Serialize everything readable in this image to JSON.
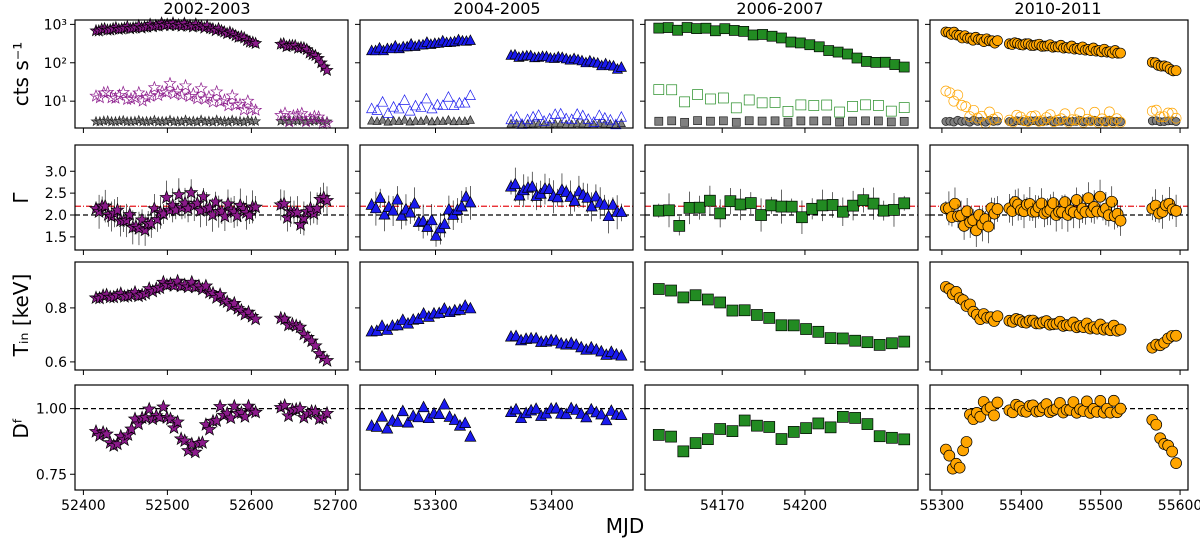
{
  "chart_data": {
    "type": "scatter",
    "title": "",
    "xlabel": "MJD",
    "row_labels": {
      "rate": "cts s⁻¹",
      "gamma": "Γ",
      "tin": "Tᵢₙ  [keV]",
      "df": "Dᶠ"
    },
    "reference_lines": {
      "gamma_black": 2.0,
      "gamma_red": 2.2,
      "df_black": 1.0
    },
    "columns": [
      {
        "title": "2002-2003",
        "marker": "star",
        "color": "#8b1a8b",
        "xlim": [
          52390,
          52715
        ],
        "xticks": [
          "52400",
          "52500",
          "52600",
          "52700"
        ],
        "xtick_values": [
          52400,
          52500,
          52600,
          52700
        ],
        "segments": [
          [
            52415,
            52605
          ],
          [
            52635,
            52690
          ]
        ],
        "rate_total_knots": [
          [
            52415,
            700
          ],
          [
            52470,
            850
          ],
          [
            52500,
            1000
          ],
          [
            52540,
            900
          ],
          [
            52605,
            300
          ],
          [
            52635,
            300
          ],
          [
            52660,
            250
          ],
          [
            52690,
            60
          ]
        ],
        "rate_soft_knots": [
          [
            52415,
            15
          ],
          [
            52470,
            12
          ],
          [
            52500,
            20
          ],
          [
            52540,
            14
          ],
          [
            52605,
            6
          ],
          [
            52635,
            4
          ],
          [
            52660,
            4
          ],
          [
            52690,
            3
          ]
        ],
        "rate_hard_knots": [
          [
            52415,
            3
          ],
          [
            52605,
            3
          ],
          [
            52635,
            3
          ],
          [
            52690,
            3
          ]
        ],
        "gamma_knots": [
          [
            52415,
            2.2
          ],
          [
            52450,
            1.9
          ],
          [
            52470,
            1.7
          ],
          [
            52500,
            2.2
          ],
          [
            52530,
            2.3
          ],
          [
            52560,
            2.1
          ],
          [
            52605,
            2.1
          ],
          [
            52635,
            2.2
          ],
          [
            52660,
            1.9
          ],
          [
            52690,
            2.4
          ]
        ],
        "tin_knots": [
          [
            52415,
            0.84
          ],
          [
            52470,
            0.85
          ],
          [
            52500,
            0.89
          ],
          [
            52540,
            0.88
          ],
          [
            52605,
            0.76
          ],
          [
            52635,
            0.76
          ],
          [
            52660,
            0.72
          ],
          [
            52690,
            0.6
          ]
        ],
        "df_knots": [
          [
            52415,
            0.92
          ],
          [
            52440,
            0.86
          ],
          [
            52470,
            0.97
          ],
          [
            52500,
            0.98
          ],
          [
            52530,
            0.83
          ],
          [
            52560,
            0.98
          ],
          [
            52605,
            0.99
          ],
          [
            52635,
            1.0
          ],
          [
            52690,
            0.97
          ]
        ]
      },
      {
        "title": "2004-2005",
        "marker": "triangle",
        "color": "#1a1aee",
        "xlim": [
          53235,
          53470
        ],
        "xticks": [
          "53300",
          "53400"
        ],
        "xtick_values": [
          53300,
          53400
        ],
        "segments": [
          [
            53245,
            53330
          ],
          [
            53365,
            53460
          ]
        ],
        "rate_total_knots": [
          [
            53245,
            200
          ],
          [
            53270,
            250
          ],
          [
            53300,
            320
          ],
          [
            53330,
            380
          ],
          [
            53365,
            150
          ],
          [
            53410,
            130
          ],
          [
            53460,
            70
          ]
        ],
        "rate_soft_knots": [
          [
            53245,
            6
          ],
          [
            53300,
            8
          ],
          [
            53330,
            10
          ],
          [
            53365,
            3
          ],
          [
            53410,
            4
          ],
          [
            53460,
            3
          ]
        ],
        "rate_hard_knots": [
          [
            53245,
            3
          ],
          [
            53330,
            3
          ],
          [
            53365,
            2.5
          ],
          [
            53460,
            2.5
          ]
        ],
        "gamma_knots": [
          [
            53245,
            2.2
          ],
          [
            53280,
            2.1
          ],
          [
            53300,
            1.6
          ],
          [
            53320,
            2.2
          ],
          [
            53330,
            2.3
          ],
          [
            53365,
            2.6
          ],
          [
            53400,
            2.5
          ],
          [
            53430,
            2.4
          ],
          [
            53460,
            2.0
          ]
        ],
        "tin_knots": [
          [
            53245,
            0.71
          ],
          [
            53270,
            0.74
          ],
          [
            53300,
            0.78
          ],
          [
            53330,
            0.8
          ],
          [
            53365,
            0.69
          ],
          [
            53410,
            0.67
          ],
          [
            53460,
            0.62
          ]
        ],
        "df_knots": [
          [
            53245,
            0.93
          ],
          [
            53280,
            0.97
          ],
          [
            53310,
            0.99
          ],
          [
            53330,
            0.9
          ],
          [
            53365,
            0.98
          ],
          [
            53410,
            0.99
          ],
          [
            53460,
            0.97
          ]
        ]
      },
      {
        "title": "2006-2007",
        "marker": "square",
        "color": "#228b22",
        "xlim": [
          54142,
          54241
        ],
        "xticks": [
          "54170",
          "54200"
        ],
        "xtick_values": [
          54170,
          54200
        ],
        "segments": [
          [
            54147,
            54236
          ]
        ],
        "rate_total_knots": [
          [
            54147,
            800
          ],
          [
            54170,
            750
          ],
          [
            54200,
            300
          ],
          [
            54220,
            120
          ],
          [
            54236,
            80
          ]
        ],
        "rate_soft_knots": [
          [
            54147,
            20
          ],
          [
            54160,
            12
          ],
          [
            54180,
            9
          ],
          [
            54200,
            7
          ],
          [
            54236,
            7
          ]
        ],
        "rate_hard_knots": [
          [
            54147,
            3
          ],
          [
            54236,
            3
          ]
        ],
        "gamma_knots": [
          [
            54147,
            2.1
          ],
          [
            54155,
            1.95
          ],
          [
            54165,
            2.25
          ],
          [
            54180,
            2.2
          ],
          [
            54200,
            2.1
          ],
          [
            54220,
            2.25
          ],
          [
            54236,
            2.15
          ]
        ],
        "tin_knots": [
          [
            54147,
            0.87
          ],
          [
            54165,
            0.83
          ],
          [
            54180,
            0.78
          ],
          [
            54200,
            0.72
          ],
          [
            54220,
            0.67
          ],
          [
            54236,
            0.67
          ]
        ],
        "df_knots": [
          [
            54147,
            0.9
          ],
          [
            54160,
            0.85
          ],
          [
            54175,
            0.95
          ],
          [
            54195,
            0.9
          ],
          [
            54215,
            0.97
          ],
          [
            54236,
            0.87
          ]
        ]
      },
      {
        "title": "2010-2011",
        "marker": "circle",
        "color": "#ffa500",
        "xlim": [
          55285,
          55610
        ],
        "xticks": [
          "55300",
          "55400",
          "55500",
          "55600"
        ],
        "xtick_values": [
          55300,
          55400,
          55500,
          55600
        ],
        "segments": [
          [
            55305,
            55370
          ],
          [
            55385,
            55525
          ],
          [
            55565,
            55595
          ]
        ],
        "rate_total_knots": [
          [
            55305,
            650
          ],
          [
            55330,
            450
          ],
          [
            55370,
            350
          ],
          [
            55385,
            320
          ],
          [
            55450,
            260
          ],
          [
            55525,
            180
          ],
          [
            55565,
            100
          ],
          [
            55595,
            60
          ]
        ],
        "rate_soft_knots": [
          [
            55305,
            20
          ],
          [
            55320,
            10
          ],
          [
            55340,
            4
          ],
          [
            55370,
            3.5
          ],
          [
            55385,
            3.5
          ],
          [
            55525,
            3.5
          ],
          [
            55565,
            5
          ],
          [
            55595,
            4
          ]
        ],
        "rate_hard_knots": [
          [
            55305,
            3
          ],
          [
            55595,
            3
          ]
        ],
        "gamma_knots": [
          [
            55305,
            2.2
          ],
          [
            55330,
            1.9
          ],
          [
            55350,
            1.8
          ],
          [
            55370,
            2.1
          ],
          [
            55385,
            2.2
          ],
          [
            55450,
            2.1
          ],
          [
            55500,
            2.2
          ],
          [
            55525,
            2.0
          ],
          [
            55565,
            2.1
          ],
          [
            55595,
            2.2
          ]
        ],
        "tin_knots": [
          [
            55305,
            0.88
          ],
          [
            55330,
            0.82
          ],
          [
            55345,
            0.77
          ],
          [
            55370,
            0.76
          ],
          [
            55385,
            0.755
          ],
          [
            55450,
            0.74
          ],
          [
            55525,
            0.72
          ],
          [
            55565,
            0.65
          ],
          [
            55595,
            0.7
          ]
        ],
        "df_knots": [
          [
            55305,
            0.85
          ],
          [
            55320,
            0.75
          ],
          [
            55335,
            0.95
          ],
          [
            55350,
            1.0
          ],
          [
            55370,
            1.0
          ],
          [
            55385,
            1.0
          ],
          [
            55525,
            1.0
          ],
          [
            55565,
            0.95
          ],
          [
            55595,
            0.8
          ]
        ]
      }
    ],
    "rows": [
      {
        "key": "rate",
        "scale": "log",
        "ylim": [
          2,
          1300
        ],
        "yticks": [
          {
            "value": 10,
            "label": "10¹"
          },
          {
            "value": 100,
            "label": "10²"
          },
          {
            "value": 1000,
            "label": "10³"
          }
        ]
      },
      {
        "key": "gamma",
        "scale": "linear",
        "ylim": [
          1.2,
          3.6
        ],
        "yticks": [
          {
            "value": 1.5,
            "label": "1.5"
          },
          {
            "value": 2.0,
            "label": "2.0"
          },
          {
            "value": 2.5,
            "label": "2.5"
          },
          {
            "value": 3.0,
            "label": "3.0"
          }
        ]
      },
      {
        "key": "tin",
        "scale": "linear",
        "ylim": [
          0.57,
          0.97
        ],
        "yticks": [
          {
            "value": 0.6,
            "label": "0.6"
          },
          {
            "value": 0.8,
            "label": "0.8"
          }
        ]
      },
      {
        "key": "df",
        "scale": "linear",
        "ylim": [
          0.69,
          1.09
        ],
        "yticks": [
          {
            "value": 0.75,
            "label": "0.75"
          },
          {
            "value": 1.0,
            "label": "1.00"
          }
        ]
      }
    ]
  }
}
